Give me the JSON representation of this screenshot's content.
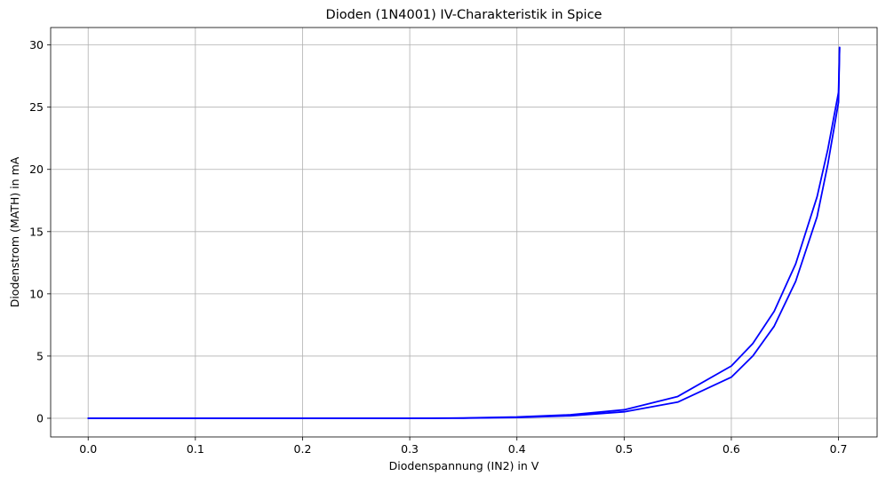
{
  "chart_data": {
    "type": "line",
    "title": "Dioden (1N4001) IV-Charakteristik in Spice",
    "xlabel": "Diodenspannung (IN2) in V",
    "ylabel": "Diodenstrom (MATH) in mA",
    "xlim": [
      -0.035,
      0.736
    ],
    "ylim": [
      -1.5,
      31.4
    ],
    "xticks": [
      0.0,
      0.1,
      0.2,
      0.3,
      0.4,
      0.5,
      0.6,
      0.7
    ],
    "xtick_labels": [
      "0.0",
      "0.1",
      "0.2",
      "0.3",
      "0.4",
      "0.5",
      "0.6",
      "0.7"
    ],
    "yticks": [
      0,
      5,
      10,
      15,
      20,
      25,
      30
    ],
    "ytick_labels": [
      "0",
      "5",
      "10",
      "15",
      "20",
      "25",
      "30"
    ],
    "grid": true,
    "series_color": "#0000ff",
    "grid_color": "#b0b0b0",
    "series": [
      {
        "x": [
          0.0,
          0.3,
          0.35,
          0.4,
          0.45,
          0.5,
          0.55,
          0.6,
          0.62,
          0.64,
          0.66,
          0.68,
          0.69,
          0.7,
          0.701
        ],
        "y": [
          0.0,
          0.0,
          0.02,
          0.1,
          0.28,
          0.68,
          1.75,
          4.2,
          6.0,
          8.6,
          12.4,
          17.8,
          21.6,
          26.2,
          29.8
        ]
      },
      {
        "x": [
          0.0,
          0.3,
          0.35,
          0.4,
          0.45,
          0.5,
          0.55,
          0.6,
          0.62,
          0.64,
          0.66,
          0.68,
          0.69,
          0.7,
          0.701
        ],
        "y": [
          0.0,
          0.0,
          0.01,
          0.06,
          0.2,
          0.52,
          1.3,
          3.3,
          5.0,
          7.4,
          11.0,
          16.2,
          20.4,
          25.4,
          29.8
        ]
      }
    ]
  }
}
